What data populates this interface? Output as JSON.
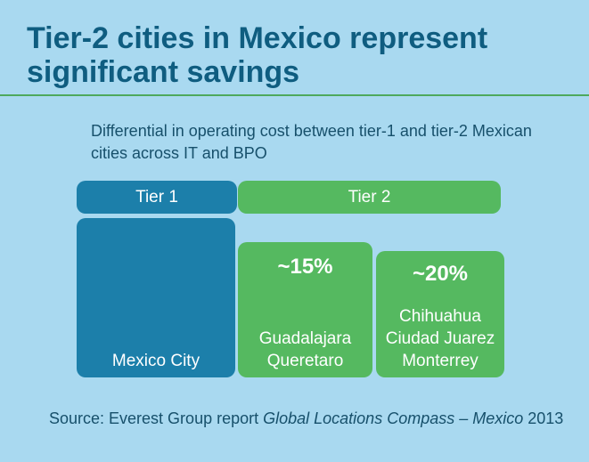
{
  "header": {
    "title": "Tier-2 cities in Mexico represent significant savings",
    "subtitle": "Differential in operating cost between tier-1 and tier-2 Mexican cities across IT and BPO"
  },
  "tiers": [
    {
      "label": "Tier 1"
    },
    {
      "label": "Tier 2"
    }
  ],
  "groups": [
    {
      "cities": [
        "Mexico City"
      ]
    },
    {
      "differential": "~15%",
      "cities": [
        "Guadalajara",
        "Queretaro"
      ]
    },
    {
      "differential": "~20%",
      "cities": [
        "Chihuahua",
        "Ciudad Juarez",
        "Monterrey"
      ]
    }
  ],
  "footer": {
    "source": [
      "Source: Everest Group report ",
      "Global Locations Compass – Mexico",
      " 2013"
    ]
  }
}
